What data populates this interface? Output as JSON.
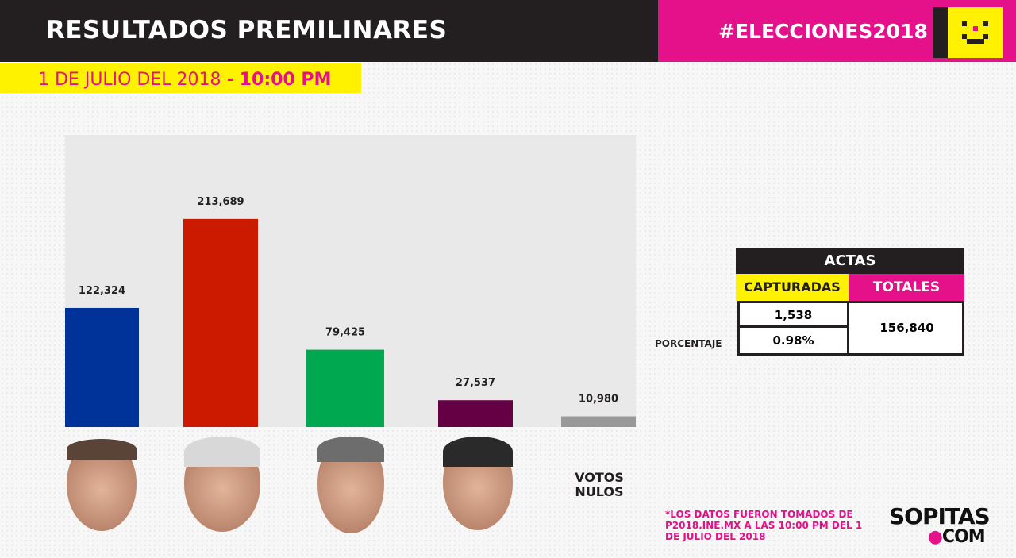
{
  "header": {
    "title": "RESULTADOS PREMILINARES",
    "hashtag": "#ELECCIONES2018",
    "date": "1 DE JULIO DEL 2018",
    "separator": "-",
    "time": "10:00 PM"
  },
  "colors": {
    "brand_pink": "#e5118a",
    "brand_yellow": "#fff200",
    "dark": "#231f20",
    "plot_bg": "#e9e9e9"
  },
  "chart_data": {
    "type": "bar",
    "categories": [
      "candidate-1",
      "candidate-2",
      "candidate-3",
      "candidate-4",
      "VOTOS NULOS"
    ],
    "values": [
      122324,
      213689,
      79425,
      27537,
      10980
    ],
    "value_labels": [
      "122,324",
      "213,689",
      "79,425",
      "27,537",
      "10,980"
    ],
    "colors": [
      "#003399",
      "#cc1a00",
      "#00a94f",
      "#660044",
      "#999999"
    ],
    "ylim": [
      0,
      300000
    ],
    "grid": false,
    "category_label_nulos": "VOTOS NULOS"
  },
  "actas": {
    "title": "ACTAS",
    "capturadas_label": "CAPTURADAS",
    "totales_label": "TOTALES",
    "capturadas": "1,538",
    "porcentaje": "0.98%",
    "totales": "156,840",
    "porcentaje_label": "PORCENTAJE"
  },
  "footer": {
    "note": "*LOS DATOS FUERON TOMADOS DE P2018.INE.MX A LAS 10:00 PM DEL 1 DE JULIO DEL 2018",
    "logo": "SOPITAS.COM",
    "logo_main": "SOPITAS",
    "logo_com": "COM"
  }
}
